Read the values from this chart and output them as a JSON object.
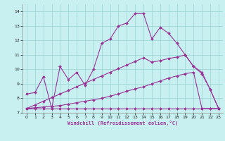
{
  "xlabel": "Windchill (Refroidissement éolien,°C)",
  "background_color": "#c8f0f0",
  "grid_color": "#a0d8d8",
  "line_color": "#993399",
  "x_values": [
    0,
    1,
    2,
    3,
    4,
    5,
    6,
    7,
    8,
    9,
    10,
    11,
    12,
    13,
    14,
    15,
    16,
    17,
    18,
    19,
    20,
    21,
    22,
    23
  ],
  "y_main": [
    8.3,
    8.4,
    9.5,
    7.3,
    10.2,
    9.3,
    9.8,
    8.9,
    10.0,
    11.8,
    12.1,
    13.0,
    13.2,
    13.85,
    13.85,
    12.1,
    12.9,
    12.5,
    11.8,
    11.0,
    10.2,
    9.8,
    8.6,
    7.3
  ],
  "y_lin_hi": [
    7.3,
    7.55,
    7.8,
    8.05,
    8.3,
    8.55,
    8.8,
    9.05,
    9.3,
    9.55,
    9.8,
    10.05,
    10.3,
    10.55,
    10.8,
    10.5,
    10.6,
    10.75,
    10.85,
    11.0,
    10.2,
    9.7,
    8.6,
    7.3
  ],
  "y_lin_lo": [
    7.3,
    7.35,
    7.4,
    7.45,
    7.5,
    7.6,
    7.7,
    7.8,
    7.9,
    8.0,
    8.15,
    8.3,
    8.5,
    8.65,
    8.8,
    9.0,
    9.2,
    9.4,
    9.55,
    9.7,
    9.8,
    7.3,
    7.3,
    7.3
  ],
  "y_flat": [
    7.3,
    7.3,
    7.3,
    7.3,
    7.3,
    7.3,
    7.3,
    7.3,
    7.3,
    7.3,
    7.3,
    7.3,
    7.3,
    7.3,
    7.3,
    7.3,
    7.3,
    7.3,
    7.3,
    7.3,
    7.3,
    7.3,
    7.3,
    7.3
  ],
  "ylim": [
    7.0,
    14.5
  ],
  "xlim": [
    -0.5,
    23.5
  ],
  "yticks": [
    7,
    8,
    9,
    10,
    11,
    12,
    13,
    14
  ],
  "xticks": [
    0,
    1,
    2,
    3,
    4,
    5,
    6,
    7,
    8,
    9,
    10,
    11,
    12,
    13,
    14,
    15,
    16,
    17,
    18,
    19,
    20,
    21,
    22,
    23
  ]
}
